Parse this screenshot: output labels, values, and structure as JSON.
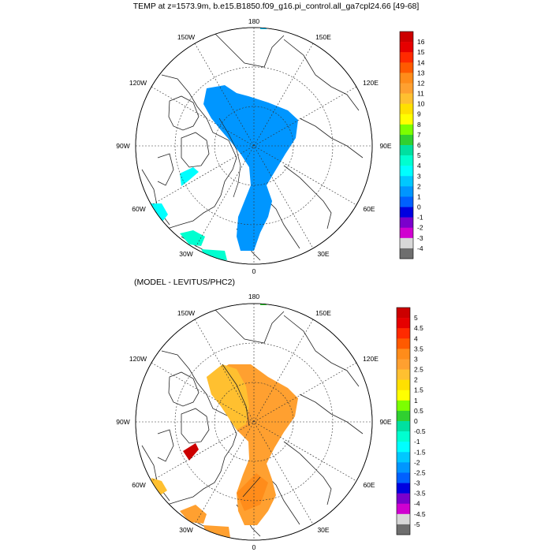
{
  "title": "TEMP at z=1573.9m, b.e15.B1850.f09_g16.pi_control.all_ga7cpl24.66 [49-68]",
  "subtitle": "(MODEL - LEVITUS/PHC2)",
  "longitude_labels": {
    "lon180": "180",
    "lon150W": "150W",
    "lon150E": "150E",
    "lon120W": "120W",
    "lon120E": "120E",
    "lon90W": "90W",
    "lon90E": "90E",
    "lon60W": "60W",
    "lon60E": "60E",
    "lon30W": "30W",
    "lon30E": "30E",
    "lon0": "0"
  },
  "colorbar_top": {
    "labels": [
      "16",
      "15",
      "14",
      "13",
      "12",
      "11",
      "10",
      "9",
      "8",
      "7",
      "6",
      "5",
      "4",
      "3",
      "2",
      "1",
      "0",
      "-1",
      "-2",
      "-3",
      "-4"
    ],
    "colors": [
      "#cc0000",
      "#e60000",
      "#ff2a00",
      "#ff5a00",
      "#ff8c1a",
      "#ffa030",
      "#ffc030",
      "#ffe000",
      "#ffff00",
      "#7cff00",
      "#30d030",
      "#00e0a0",
      "#00ffd0",
      "#00ffff",
      "#00c8ff",
      "#0096ff",
      "#0060ff",
      "#0000e0",
      "#7a00cc",
      "#d000d0",
      "#d8d8d8",
      "#6e6e6e"
    ]
  },
  "colorbar_bottom": {
    "labels": [
      "5",
      "4.5",
      "4",
      "3.5",
      "3",
      "2.5",
      "2",
      "1.5",
      "1",
      "0.5",
      "0",
      "-0.5",
      "-1",
      "-1.5",
      "-2",
      "-2.5",
      "-3",
      "-3.5",
      "-4",
      "-4.5",
      "-5"
    ],
    "colors": [
      "#cc0000",
      "#e60000",
      "#ff2a00",
      "#ff5a00",
      "#ff8c1a",
      "#ffa030",
      "#ffc030",
      "#ffe000",
      "#ffff00",
      "#7cff00",
      "#30d030",
      "#00e0a0",
      "#00ffd0",
      "#00ffff",
      "#00c8ff",
      "#0096ff",
      "#0060ff",
      "#0000e0",
      "#7a00cc",
      "#d000d0",
      "#d8d8d8",
      "#6e6e6e"
    ]
  }
}
